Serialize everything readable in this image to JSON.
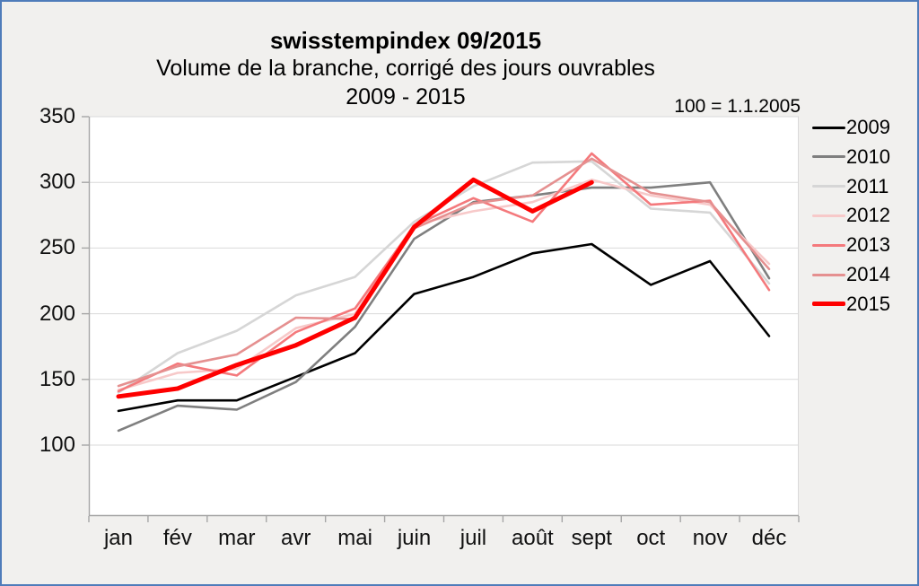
{
  "header": {
    "title": "swisstempindex 09/2015",
    "subtitle1": "Volume de la branche, corrigé des jours ouvrables",
    "subtitle2": "2009 - 2015",
    "note": "100 = 1.1.2005"
  },
  "colors": {
    "plot_background": "#ffffff",
    "page_background": "#f1f0ee",
    "frame_border": "#4f7cba",
    "gridline": "#d9d9d9",
    "axis": "#a6a6a6"
  },
  "chart_data": {
    "type": "line",
    "title": "swisstempindex 09/2015",
    "xlabel": "",
    "ylabel": "",
    "categories": [
      "jan",
      "fév",
      "mar",
      "avr",
      "mai",
      "juin",
      "juil",
      "août",
      "sept",
      "oct",
      "nov",
      "déc"
    ],
    "yticks": [
      350,
      300,
      250,
      200,
      150,
      100
    ],
    "ylim": [
      45,
      350
    ],
    "grid": true,
    "legend_position": "right",
    "note": "100 = 1.1.2005",
    "series": [
      {
        "name": "2009",
        "color": "#000000",
        "width": 2.6,
        "values": [
          126,
          134,
          134,
          152,
          170,
          215,
          228,
          246,
          253,
          222,
          240,
          183
        ]
      },
      {
        "name": "2010",
        "color": "#7f7f7f",
        "width": 2.6,
        "values": [
          111,
          130,
          127,
          148,
          190,
          257,
          285,
          290,
          296,
          296,
          300,
          227
        ]
      },
      {
        "name": "2011",
        "color": "#d6d6d6",
        "width": 2.6,
        "values": [
          140,
          170,
          187,
          214,
          228,
          270,
          297,
          315,
          316,
          280,
          277,
          223
        ]
      },
      {
        "name": "2012",
        "color": "#f7c9c9",
        "width": 2.6,
        "values": [
          142,
          155,
          158,
          189,
          200,
          268,
          278,
          285,
          302,
          290,
          283,
          238
        ]
      },
      {
        "name": "2013",
        "color": "#f4797c",
        "width": 2.6,
        "values": [
          141,
          162,
          153,
          186,
          204,
          267,
          288,
          270,
          322,
          283,
          286,
          218
        ]
      },
      {
        "name": "2014",
        "color": "#e59090",
        "width": 2.6,
        "values": [
          145,
          160,
          169,
          197,
          196,
          265,
          284,
          290,
          318,
          292,
          285,
          234
        ]
      },
      {
        "name": "2015",
        "color": "#fe0000",
        "width": 5,
        "values": [
          137,
          143,
          161,
          176,
          197,
          266,
          302,
          278,
          300,
          null,
          null,
          null
        ]
      }
    ]
  }
}
